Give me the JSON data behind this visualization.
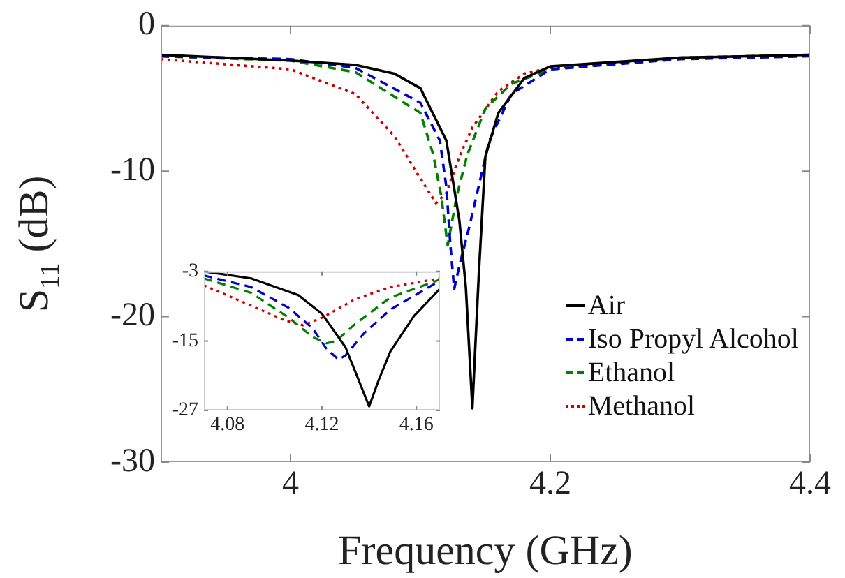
{
  "chart_data": [
    {
      "type": "line",
      "xlabel": "Frequency (GHz)",
      "ylabel": "S$_{11}$ (dB)",
      "xlim": [
        3.9,
        4.4
      ],
      "ylim": [
        -30,
        0
      ],
      "xticks": [
        4,
        4.2,
        4.4
      ],
      "yticks": [
        -30,
        -20,
        -10,
        0
      ],
      "grid": false,
      "legend": "bottom right",
      "series": [
        {
          "name": "Air",
          "color": "#000000",
          "line_style": "solid",
          "x": [
            3.9,
            4.0,
            4.05,
            4.08,
            4.1,
            4.12,
            4.13,
            4.135,
            4.14,
            4.145,
            4.15,
            4.16,
            4.18,
            4.2,
            4.3,
            4.4
          ],
          "values": [
            -2.0,
            -2.4,
            -2.7,
            -3.3,
            -4.3,
            -7.9,
            -13.4,
            -18.0,
            -26.3,
            -17.0,
            -9.0,
            -6.0,
            -3.6,
            -2.8,
            -2.2,
            -2.0
          ]
        },
        {
          "name": "Iso Propyl Alcohol",
          "color": "#0000cc",
          "line_style": "dashed",
          "x": [
            3.9,
            4.0,
            4.05,
            4.1,
            4.115,
            4.12,
            4.123,
            4.126,
            4.13,
            4.138,
            4.153,
            4.17,
            4.2,
            4.3,
            4.4
          ],
          "values": [
            -2.1,
            -2.3,
            -2.9,
            -5.3,
            -7.9,
            -11.1,
            -15.0,
            -18.1,
            -16.5,
            -13.7,
            -7.9,
            -4.7,
            -3.0,
            -2.3,
            -2.1
          ]
        },
        {
          "name": "Ethanol",
          "color": "#008000",
          "line_style": "dashed",
          "x": [
            3.9,
            4.0,
            4.05,
            4.1,
            4.11,
            4.116,
            4.121,
            4.128,
            4.136,
            4.15,
            4.17,
            4.2,
            4.3,
            4.4
          ],
          "values": [
            -2.1,
            -2.4,
            -3.2,
            -6.0,
            -8.9,
            -11.7,
            -15.1,
            -11.7,
            -8.9,
            -5.7,
            -4.0,
            -3.0,
            -2.2,
            -2.0
          ]
        },
        {
          "name": "Methanol",
          "color": "#cc0000",
          "line_style": "dotted",
          "x": [
            3.9,
            4.0,
            4.05,
            4.08,
            4.1,
            4.112,
            4.12,
            4.13,
            4.14,
            4.16,
            4.18,
            4.2,
            4.3,
            4.4
          ],
          "values": [
            -2.3,
            -3.0,
            -4.7,
            -7.6,
            -10.5,
            -12.2,
            -11.5,
            -9.0,
            -7.0,
            -4.5,
            -3.3,
            -2.9,
            -2.2,
            -2.0
          ]
        }
      ]
    },
    {
      "type": "line",
      "xlim": [
        4.07,
        4.17
      ],
      "ylim": [
        -27,
        -3
      ],
      "xticks": [
        4.08,
        4.12,
        4.16
      ],
      "yticks": [
        -27,
        -15,
        -3
      ],
      "grid": false,
      "series": [
        {
          "color": "#000000",
          "line_style": "solid",
          "x": [
            4.07,
            4.09,
            4.11,
            4.12,
            4.13,
            4.1356,
            4.14,
            4.144,
            4.149,
            4.159,
            4.17
          ],
          "values": [
            -3.0,
            -4.2,
            -7.1,
            -10.3,
            -16.1,
            -21.8,
            -26.3,
            -21.8,
            -16.8,
            -10.7,
            -6.0
          ]
        },
        {
          "color": "#0000cc",
          "line_style": "dashed",
          "x": [
            4.07,
            4.09,
            4.106,
            4.116,
            4.122,
            4.127,
            4.13,
            4.138,
            4.149,
            4.17
          ],
          "values": [
            -3.7,
            -5.7,
            -9.3,
            -12.8,
            -16.4,
            -18.2,
            -17.5,
            -13.6,
            -9.6,
            -4.6
          ]
        },
        {
          "color": "#008000",
          "line_style": "dashed",
          "x": [
            4.07,
            4.09,
            4.106,
            4.116,
            4.122,
            4.126,
            4.134,
            4.149,
            4.17
          ],
          "values": [
            -4.2,
            -6.7,
            -11.0,
            -14.3,
            -15.4,
            -15.0,
            -12.1,
            -7.5,
            -4.4
          ]
        },
        {
          "color": "#cc0000",
          "line_style": "dotted",
          "x": [
            4.07,
            4.09,
            4.104,
            4.112,
            4.12,
            4.134,
            4.149,
            4.17
          ],
          "values": [
            -5.4,
            -8.9,
            -11.4,
            -12.3,
            -11.0,
            -7.8,
            -5.7,
            -4.2
          ]
        }
      ]
    }
  ]
}
